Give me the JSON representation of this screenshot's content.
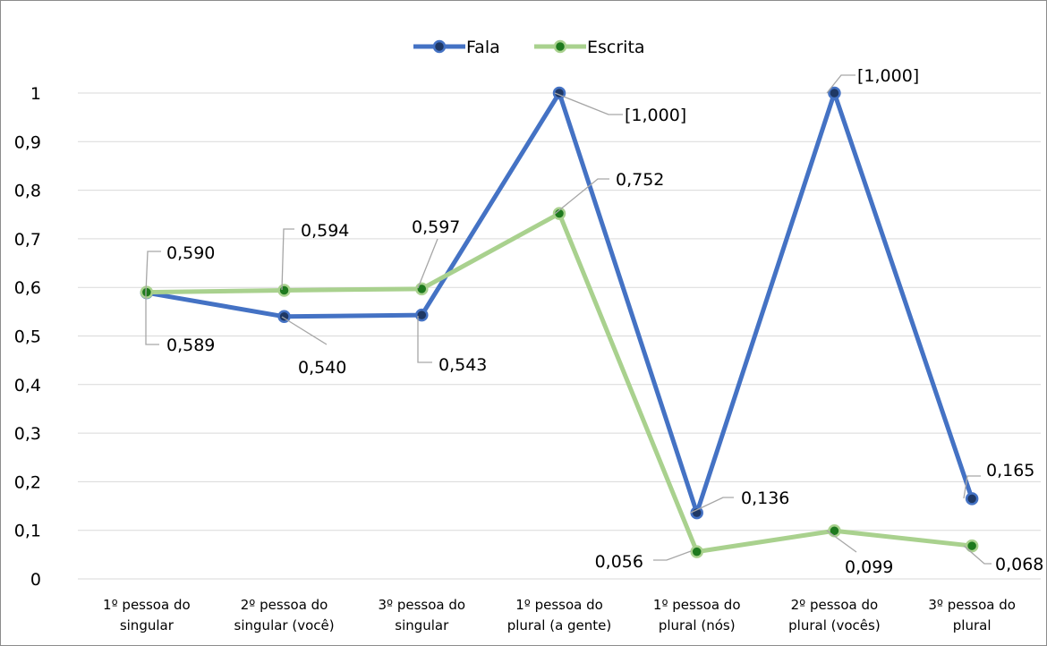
{
  "chart_data": {
    "type": "line",
    "categories": [
      [
        "1º pessoa do",
        "singular"
      ],
      [
        "2º pessoa do",
        "singular (você)"
      ],
      [
        "3º pessoa do",
        "singular"
      ],
      [
        "1º pessoa do",
        "plural (a gente)"
      ],
      [
        "1º pessoa do",
        "plural (nós)"
      ],
      [
        "2º pessoa do",
        "plural (vocês)"
      ],
      [
        "3º pessoa do",
        "plural"
      ]
    ],
    "ylim": [
      0,
      1
    ],
    "yticks": [
      {
        "value": 0,
        "label": "0"
      },
      {
        "value": 0.1,
        "label": "0,1"
      },
      {
        "value": 0.2,
        "label": "0,2"
      },
      {
        "value": 0.3,
        "label": "0,3"
      },
      {
        "value": 0.4,
        "label": "0,4"
      },
      {
        "value": 0.5,
        "label": "0,5"
      },
      {
        "value": 0.6,
        "label": "0,6"
      },
      {
        "value": 0.7,
        "label": "0,7"
      },
      {
        "value": 0.8,
        "label": "0,8"
      },
      {
        "value": 0.9,
        "label": "0,9"
      },
      {
        "value": 1,
        "label": "1"
      }
    ],
    "grid": true,
    "legend_position": "top",
    "series": [
      {
        "name": "Fala",
        "color": "#4472C4",
        "marker_color": "#1F3864",
        "values": [
          0.589,
          0.54,
          0.543,
          1.0,
          0.136,
          1.0,
          0.165
        ],
        "labels": [
          "0,589",
          "0,540",
          "0,543",
          "[1,000]",
          "0,136",
          "[1,000]",
          "0,165"
        ]
      },
      {
        "name": "Escrita",
        "color": "#A9D18E",
        "marker_color": "#1E7A1E",
        "values": [
          0.59,
          0.594,
          0.597,
          0.752,
          0.056,
          0.099,
          0.068
        ],
        "labels": [
          "0,590",
          "0,594",
          "0,597",
          "0,752",
          "0,056",
          "0,099",
          "0,068"
        ]
      }
    ]
  }
}
